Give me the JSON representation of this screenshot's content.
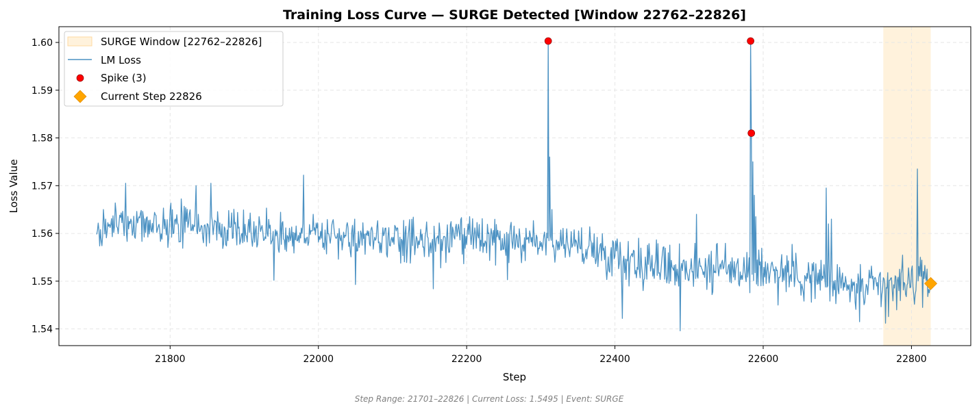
{
  "chart_data": {
    "type": "line",
    "title": "Training Loss Curve — SURGE Detected [Window 22762–22826]",
    "xlabel": "Step",
    "ylabel": "Loss Value",
    "xlim": [
      21650,
      22880
    ],
    "ylim": [
      1.5365,
      1.6033
    ],
    "xticks": [
      21800,
      22000,
      22200,
      22400,
      22600,
      22800
    ],
    "yticks": [
      1.54,
      1.55,
      1.56,
      1.57,
      1.58,
      1.59,
      1.6
    ],
    "xtick_labels": [
      "21800",
      "22000",
      "22200",
      "22400",
      "22600",
      "22800"
    ],
    "ytick_labels": [
      "1.54",
      "1.55",
      "1.56",
      "1.57",
      "1.58",
      "1.59",
      "1.60"
    ],
    "grid": true,
    "legend_position": "top-left",
    "colors": {
      "line": "#1f77b4",
      "spike": "#ff0000",
      "current": "#ffa500",
      "window": "#ffe0a8"
    },
    "surge_window": {
      "label": "SURGE Window [22762–22826]",
      "start": 22762,
      "end": 22826
    },
    "series": [
      {
        "name": "LM Loss",
        "anchors": [
          [
            21701,
            1.5598
          ],
          [
            21720,
            1.5625
          ],
          [
            21760,
            1.5615
          ],
          [
            21800,
            1.562
          ],
          [
            21850,
            1.5612
          ],
          [
            21900,
            1.5608
          ],
          [
            21950,
            1.56
          ],
          [
            22000,
            1.5598
          ],
          [
            22050,
            1.559
          ],
          [
            22100,
            1.5585
          ],
          [
            22150,
            1.5582
          ],
          [
            22200,
            1.559
          ],
          [
            22250,
            1.558
          ],
          [
            22300,
            1.5583
          ],
          [
            22350,
            1.5575
          ],
          [
            22400,
            1.5555
          ],
          [
            22450,
            1.5535
          ],
          [
            22500,
            1.553
          ],
          [
            22550,
            1.5525
          ],
          [
            22600,
            1.5525
          ],
          [
            22650,
            1.5515
          ],
          [
            22700,
            1.549
          ],
          [
            22750,
            1.548
          ],
          [
            22800,
            1.55
          ],
          [
            22826,
            1.5495
          ]
        ],
        "peaks": [
          [
            21740,
            1.5705
          ],
          [
            21835,
            1.57
          ],
          [
            21855,
            1.5705
          ],
          [
            21980,
            1.5722
          ],
          [
            21940,
            1.5502
          ],
          [
            22050,
            1.5493
          ],
          [
            22155,
            1.5484
          ],
          [
            22255,
            1.5503
          ],
          [
            22310,
            1.6003
          ],
          [
            22312,
            1.576
          ],
          [
            22315,
            1.565
          ],
          [
            22410,
            1.5422
          ],
          [
            22488,
            1.5396
          ],
          [
            22510,
            1.564
          ],
          [
            22583,
            1.6003
          ],
          [
            22584,
            1.581
          ],
          [
            22586,
            1.575
          ],
          [
            22588,
            1.568
          ],
          [
            22590,
            1.5635
          ],
          [
            22620,
            1.545
          ],
          [
            22685,
            1.5695
          ],
          [
            22688,
            1.562
          ],
          [
            22692,
            1.563
          ],
          [
            22695,
            1.55
          ],
          [
            22730,
            1.5415
          ],
          [
            22765,
            1.5412
          ],
          [
            22780,
            1.544
          ],
          [
            22808,
            1.5735
          ],
          [
            22812,
            1.555
          ],
          [
            22815,
            1.5445
          ]
        ]
      },
      {
        "name": "Spike (3)",
        "points": [
          [
            22310,
            1.6003
          ],
          [
            22583,
            1.6003
          ],
          [
            22584,
            1.581
          ]
        ]
      },
      {
        "name": "Current Step 22826",
        "points": [
          [
            22826,
            1.5495
          ]
        ]
      }
    ],
    "footer": "Step Range: 21701–22826 | Current Loss: 1.5495 | Event: SURGE"
  }
}
